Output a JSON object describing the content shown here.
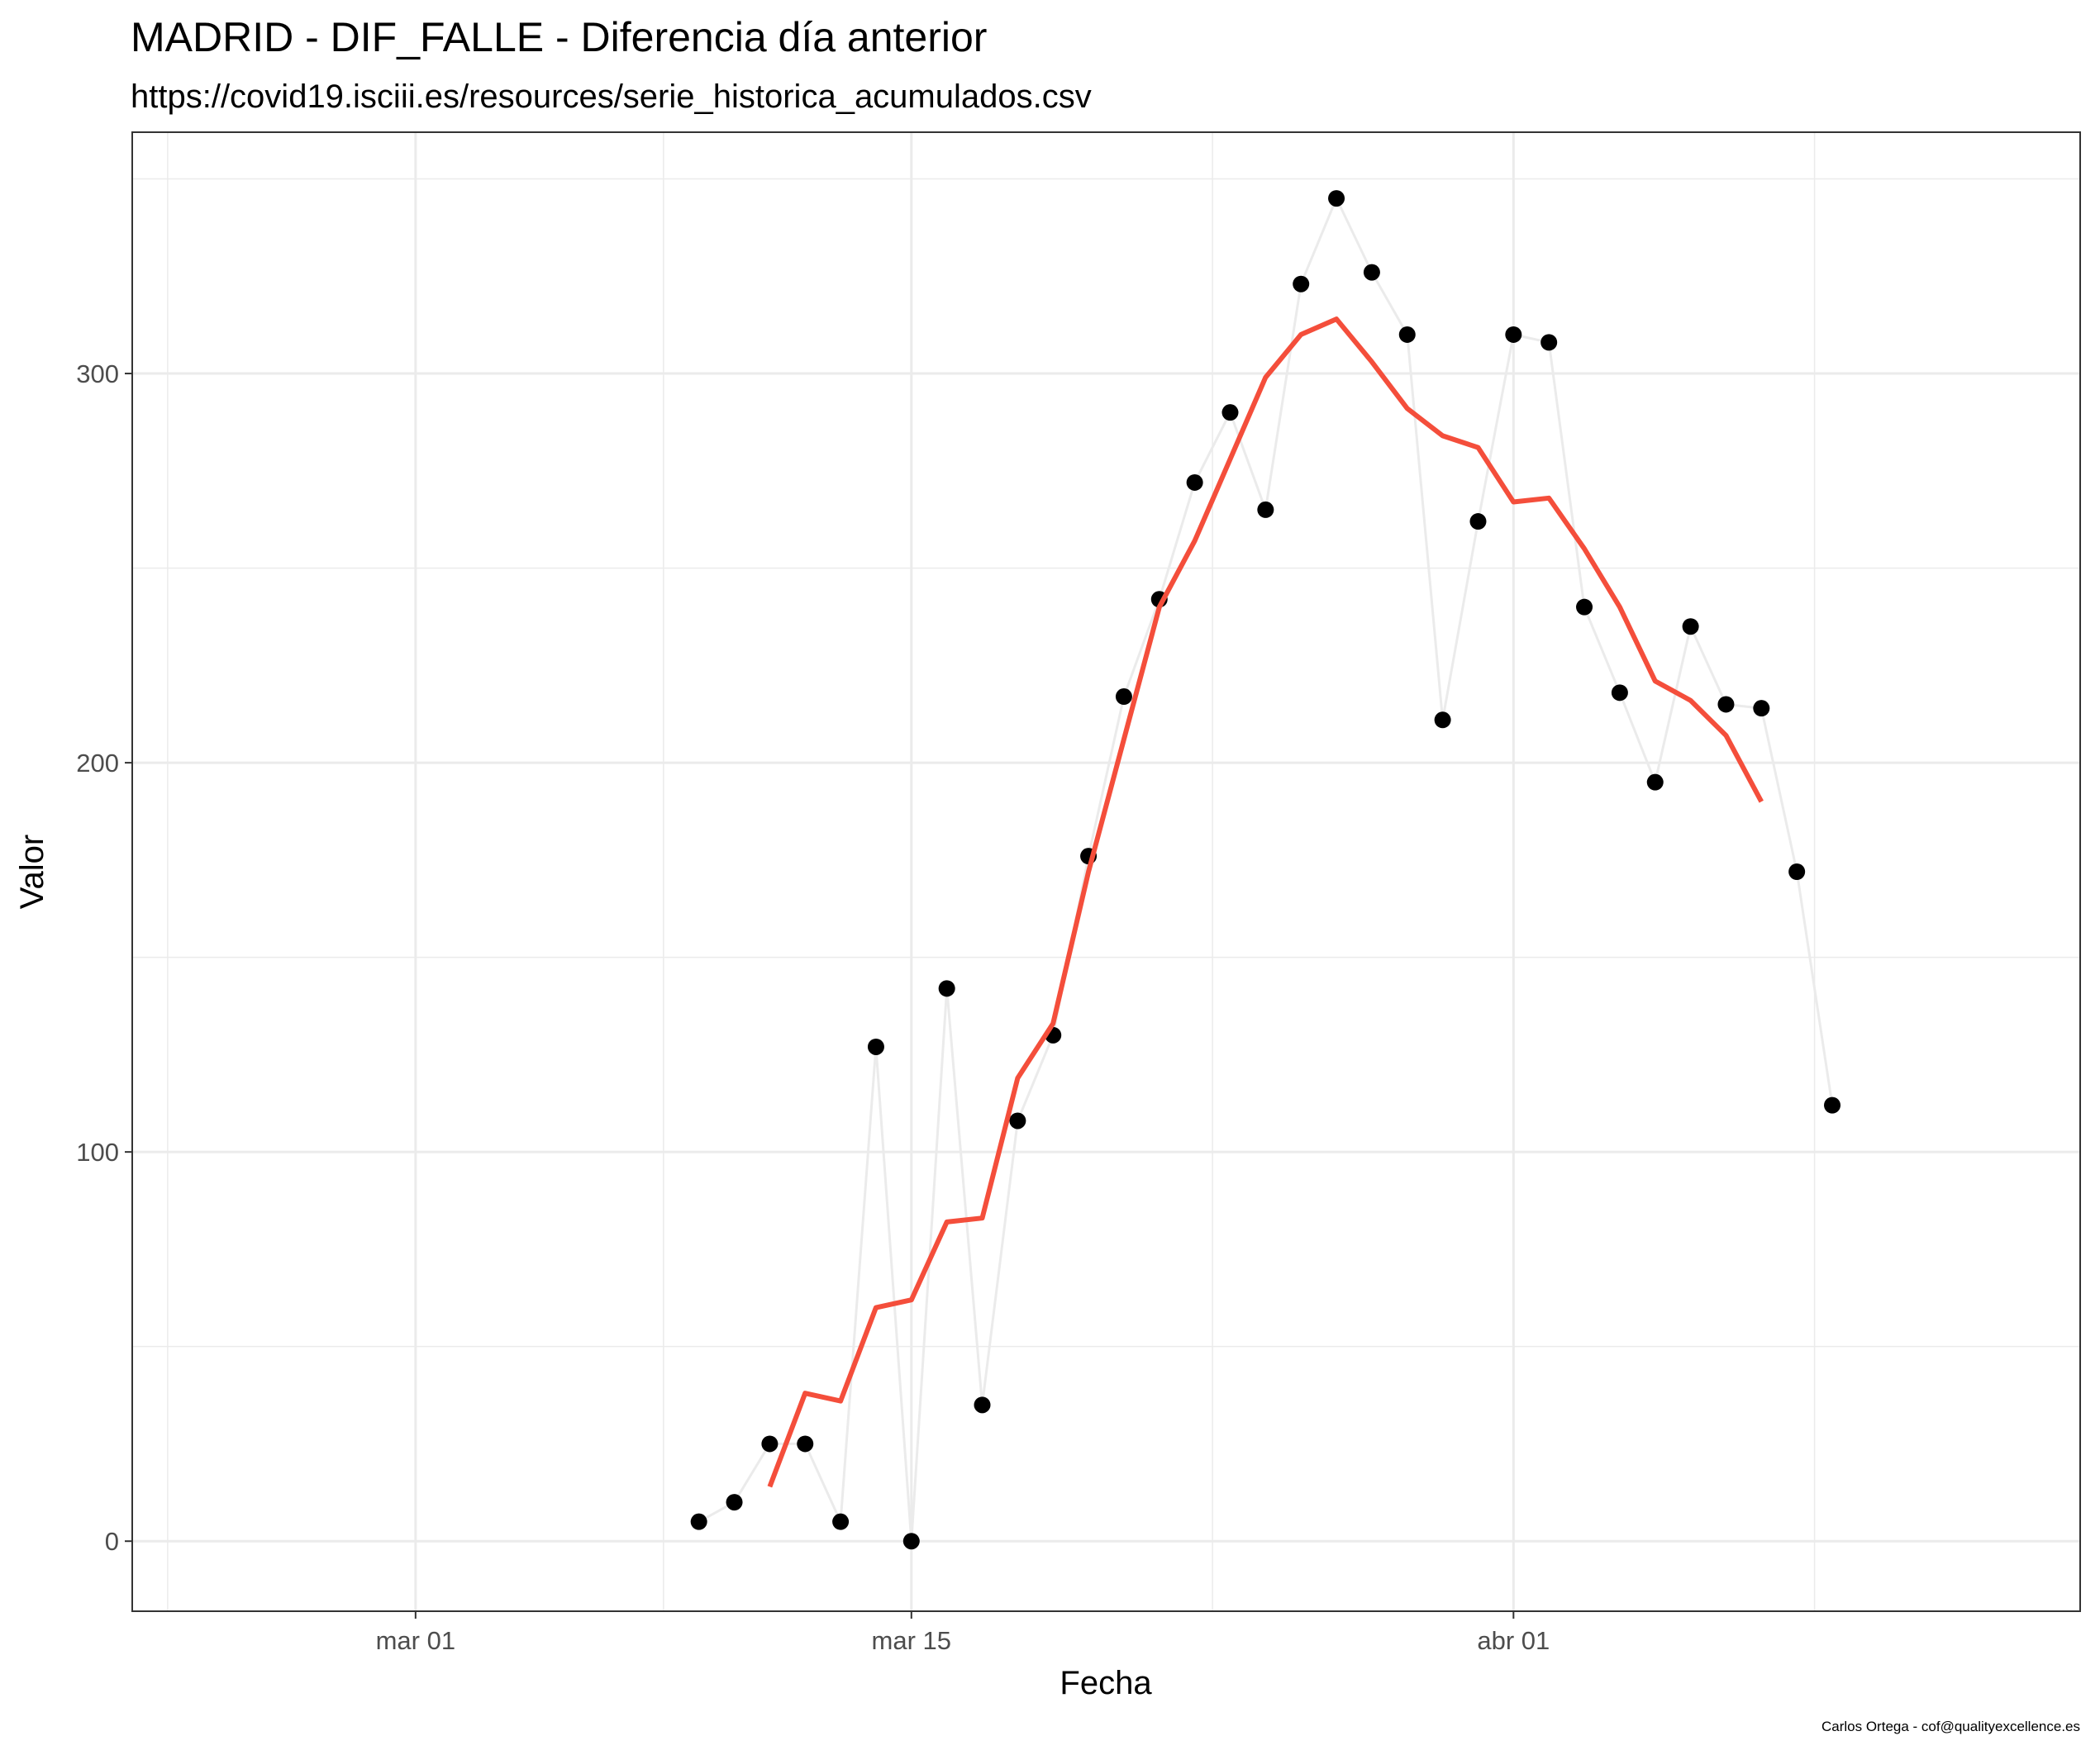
{
  "chart_data": {
    "type": "line",
    "title": "MADRID - DIF_FALLE - Diferencia día anterior",
    "subtitle": "https://covid19.isciii.es/resources/serie_historica_acumulados.csv",
    "xlabel": "Fecha",
    "ylabel": "Valor",
    "caption": "Carlos Ortega - cof@qualityexcellence.es",
    "x_ticks": [
      {
        "date": "2020-03-01",
        "label": "mar 01"
      },
      {
        "date": "2020-03-15",
        "label": "mar 15"
      },
      {
        "date": "2020-04-01",
        "label": "abr 01"
      }
    ],
    "y_ticks": [
      0,
      100,
      200,
      300
    ],
    "xlim": [
      "2020-02-22",
      "2020-04-17"
    ],
    "ylim": [
      -18,
      362
    ],
    "grid": true,
    "series": [
      {
        "kind": "points-with-line",
        "color": "#000000",
        "line_color": "#ebebeb",
        "x": [
          "2020-03-09",
          "2020-03-10",
          "2020-03-11",
          "2020-03-12",
          "2020-03-13",
          "2020-03-14",
          "2020-03-15",
          "2020-03-16",
          "2020-03-17",
          "2020-03-18",
          "2020-03-19",
          "2020-03-20",
          "2020-03-21",
          "2020-03-22",
          "2020-03-23",
          "2020-03-24",
          "2020-03-25",
          "2020-03-26",
          "2020-03-27",
          "2020-03-28",
          "2020-03-29",
          "2020-03-30",
          "2020-03-31",
          "2020-04-01",
          "2020-04-02",
          "2020-04-03",
          "2020-04-04",
          "2020-04-05",
          "2020-04-06",
          "2020-04-07",
          "2020-04-08",
          "2020-04-09",
          "2020-04-10"
        ],
        "y": [
          5,
          10,
          25,
          25,
          5,
          127,
          0,
          142,
          35,
          108,
          130,
          176,
          217,
          242,
          272,
          290,
          265,
          323,
          345,
          326,
          310,
          211,
          262,
          310,
          308,
          240,
          218,
          195,
          235,
          215,
          214,
          172,
          112
        ]
      },
      {
        "kind": "moving-average",
        "color": "#f44e3b",
        "x": [
          "2020-03-11",
          "2020-03-12",
          "2020-03-13",
          "2020-03-14",
          "2020-03-15",
          "2020-03-16",
          "2020-03-17",
          "2020-03-18",
          "2020-03-19",
          "2020-03-20",
          "2020-03-21",
          "2020-03-22",
          "2020-03-23",
          "2020-03-24",
          "2020-03-25",
          "2020-03-26",
          "2020-03-27",
          "2020-03-28",
          "2020-03-29",
          "2020-03-30",
          "2020-03-31",
          "2020-04-01",
          "2020-04-02",
          "2020-04-03",
          "2020-04-04",
          "2020-04-05",
          "2020-04-06",
          "2020-04-07",
          "2020-04-08"
        ],
        "y": [
          14,
          38,
          36,
          60,
          62,
          82,
          83,
          119,
          133,
          172,
          206,
          240,
          257,
          278,
          299,
          310,
          314,
          303,
          291,
          284,
          281,
          267,
          268,
          255,
          240,
          221,
          216,
          207,
          190
        ]
      }
    ]
  }
}
